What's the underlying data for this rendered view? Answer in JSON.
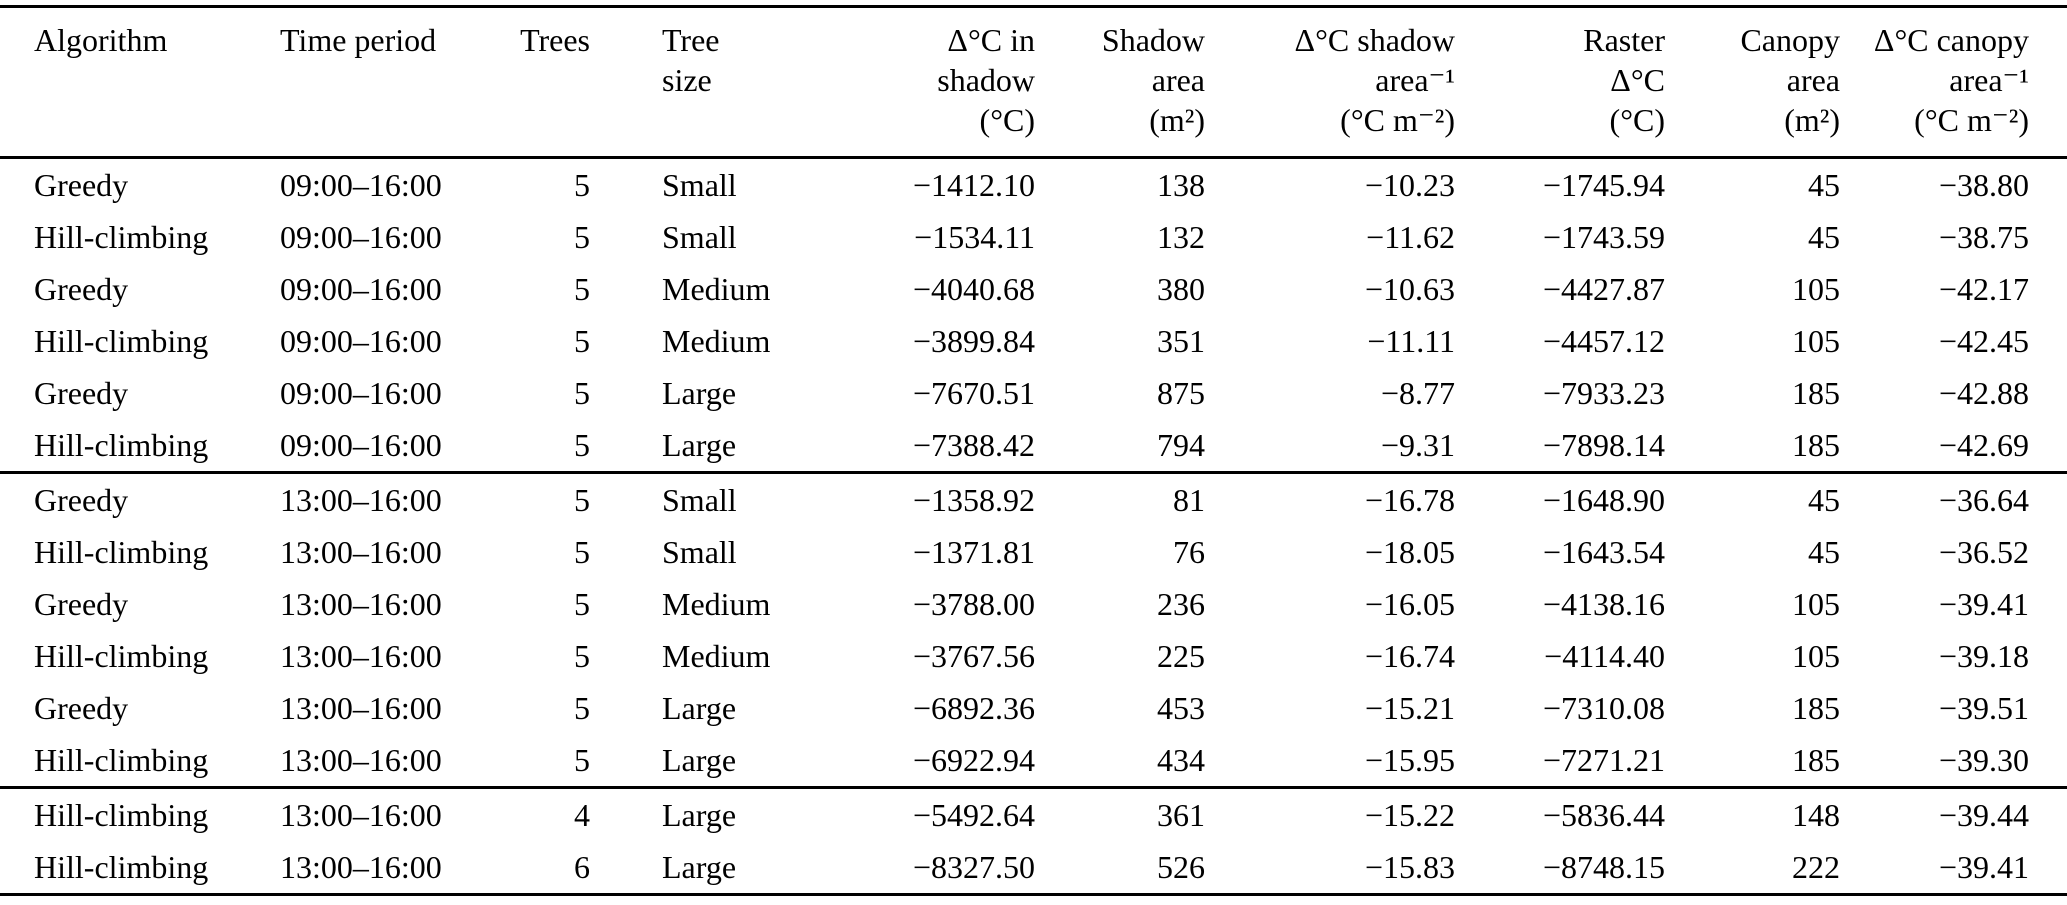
{
  "table": {
    "columns": [
      {
        "id": "algorithm",
        "align": "left",
        "lines": [
          "Algorithm"
        ]
      },
      {
        "id": "time-period",
        "align": "left",
        "lines": [
          "Time period"
        ]
      },
      {
        "id": "trees",
        "align": "right",
        "lines": [
          "Trees"
        ]
      },
      {
        "id": "tree-size",
        "align": "left",
        "lines": [
          "Tree",
          "size"
        ]
      },
      {
        "id": "dc-shadow",
        "align": "right",
        "lines": [
          "Δ°C in",
          "shadow",
          "(°C)"
        ]
      },
      {
        "id": "shadow-area",
        "align": "right",
        "lines": [
          "Shadow",
          "area",
          "(m²)"
        ]
      },
      {
        "id": "dc-shadow-area",
        "align": "right",
        "lines": [
          "Δ°C shadow",
          "area⁻¹",
          "(°C m⁻²)"
        ]
      },
      {
        "id": "raster-dc",
        "align": "right",
        "lines": [
          "Raster",
          "Δ°C",
          "(°C)"
        ]
      },
      {
        "id": "canopy-area",
        "align": "right",
        "lines": [
          "Canopy",
          "area",
          "(m²)"
        ]
      },
      {
        "id": "dc-canopy-area",
        "align": "right",
        "lines": [
          "Δ°C canopy",
          "area⁻¹",
          "(°C m⁻²)"
        ]
      }
    ],
    "groups": [
      {
        "rows": [
          [
            "Greedy",
            "09:00–16:00",
            "5",
            "Small",
            "−1412.10",
            "138",
            "−10.23",
            "−1745.94",
            "45",
            "−38.80"
          ],
          [
            "Hill-climbing",
            "09:00–16:00",
            "5",
            "Small",
            "−1534.11",
            "132",
            "−11.62",
            "−1743.59",
            "45",
            "−38.75"
          ],
          [
            "Greedy",
            "09:00–16:00",
            "5",
            "Medium",
            "−4040.68",
            "380",
            "−10.63",
            "−4427.87",
            "105",
            "−42.17"
          ],
          [
            "Hill-climbing",
            "09:00–16:00",
            "5",
            "Medium",
            "−3899.84",
            "351",
            "−11.11",
            "−4457.12",
            "105",
            "−42.45"
          ],
          [
            "Greedy",
            "09:00–16:00",
            "5",
            "Large",
            "−7670.51",
            "875",
            "−8.77",
            "−7933.23",
            "185",
            "−42.88"
          ],
          [
            "Hill-climbing",
            "09:00–16:00",
            "5",
            "Large",
            "−7388.42",
            "794",
            "−9.31",
            "−7898.14",
            "185",
            "−42.69"
          ]
        ]
      },
      {
        "rows": [
          [
            "Greedy",
            "13:00–16:00",
            "5",
            "Small",
            "−1358.92",
            "81",
            "−16.78",
            "−1648.90",
            "45",
            "−36.64"
          ],
          [
            "Hill-climbing",
            "13:00–16:00",
            "5",
            "Small",
            "−1371.81",
            "76",
            "−18.05",
            "−1643.54",
            "45",
            "−36.52"
          ],
          [
            "Greedy",
            "13:00–16:00",
            "5",
            "Medium",
            "−3788.00",
            "236",
            "−16.05",
            "−4138.16",
            "105",
            "−39.41"
          ],
          [
            "Hill-climbing",
            "13:00–16:00",
            "5",
            "Medium",
            "−3767.56",
            "225",
            "−16.74",
            "−4114.40",
            "105",
            "−39.18"
          ],
          [
            "Greedy",
            "13:00–16:00",
            "5",
            "Large",
            "−6892.36",
            "453",
            "−15.21",
            "−7310.08",
            "185",
            "−39.51"
          ],
          [
            "Hill-climbing",
            "13:00–16:00",
            "5",
            "Large",
            "−6922.94",
            "434",
            "−15.95",
            "−7271.21",
            "185",
            "−39.30"
          ]
        ]
      },
      {
        "rows": [
          [
            "Hill-climbing",
            "13:00–16:00",
            "4",
            "Large",
            "−5492.64",
            "361",
            "−15.22",
            "−5836.44",
            "148",
            "−39.44"
          ],
          [
            "Hill-climbing",
            "13:00–16:00",
            "6",
            "Large",
            "−8327.50",
            "526",
            "−15.83",
            "−8748.15",
            "222",
            "−39.41"
          ]
        ]
      }
    ]
  }
}
